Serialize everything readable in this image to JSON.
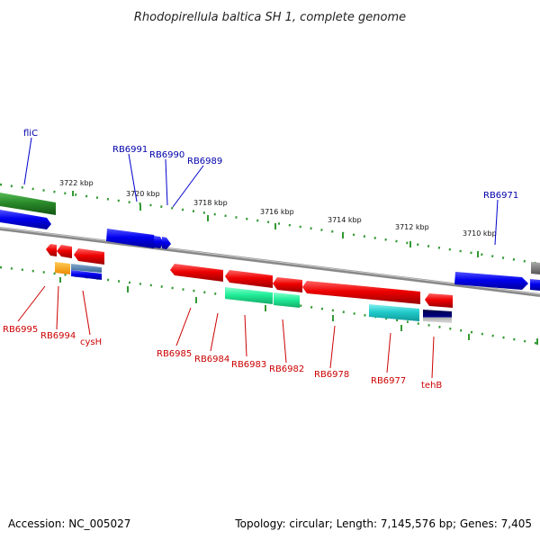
{
  "title": "Rhodopirellula baltica SH 1, complete genome",
  "footer": {
    "accession": "Accession: NC_005027",
    "summary": "Topology: circular; Length: 7,145,576 bp; Genes: 7,405"
  },
  "colors": {
    "backbone": "#888888",
    "tick": "#339933",
    "forward_label": "#0000aa",
    "reverse_label": "#cc0000",
    "gene_blue": "#0000ee",
    "gene_red": "#ee0000",
    "gene_green": "#2a8a2a",
    "gene_cyan": "#22cccc",
    "gene_mint": "#22ee99",
    "gene_orange": "#ff9900",
    "gene_navy": "#000066"
  },
  "scale_labels": [
    "3722 kbp",
    "3720 kbp",
    "3718 kbp",
    "3716 kbp",
    "3714 kbp",
    "3712 kbp",
    "3710 kbp"
  ],
  "forward_labels": [
    "fliC",
    "RB6991",
    "RB6990",
    "RB6989",
    "RB6971"
  ],
  "reverse_labels": [
    "RB6995",
    "RB6994",
    "cysH",
    "RB6985",
    "RB6984",
    "RB6983",
    "RB6982",
    "RB6978",
    "RB6977",
    "tehB"
  ]
}
